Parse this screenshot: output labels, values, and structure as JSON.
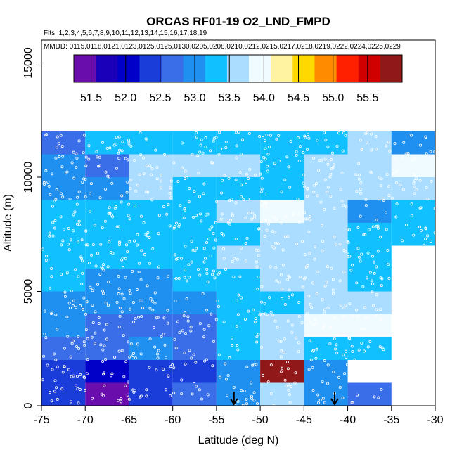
{
  "chart_data": {
    "type": "heatmap",
    "title": "ORCAS RF01-19 O2_LND_FMPD",
    "flights_label": "Flts: 1,2,3,4,5,6,7,8,9,10,11,12,13,14,15,16,17,18,19",
    "dates_label": "MMDD: 0115,0118,0121,0123,0125,0125,0130,0205,0208,0210,0212,0215,0217,0218,0219,0222,0224,0225,0229",
    "xlabel": "Latitude (deg N)",
    "ylabel": "Altitude (m)",
    "xlim": [
      -75,
      -30
    ],
    "ylim": [
      0,
      16000
    ],
    "x_ticks": [
      -75,
      -70,
      -65,
      -60,
      -55,
      -50,
      -45,
      -40,
      -35,
      -30
    ],
    "x_tick_labels": [
      "-75",
      "-70",
      "-65",
      "-60",
      "-55",
      "-50",
      "-45",
      "-40",
      "-35",
      "-30"
    ],
    "y_ticks": [
      0,
      5000,
      10000,
      15000
    ],
    "y_tick_labels": [
      "0",
      "5000",
      "10000",
      "15000"
    ],
    "colorbar": {
      "min": 51.25,
      "max": 56.0,
      "tick_values": [
        51.5,
        52.0,
        52.5,
        53.0,
        53.5,
        54.0,
        54.5,
        55.0,
        55.5
      ],
      "tick_labels": [
        "51.5",
        "52.0",
        "52.5",
        "53.0",
        "53.5",
        "54.0",
        "54.5",
        "55.0",
        "55.5"
      ],
      "colors": [
        "#6a0dad",
        "#1a00b8",
        "#0000c8",
        "#1a3cd8",
        "#3a6ee8",
        "#2090f0",
        "#10c0ff",
        "#aaddff",
        "#f0fbff",
        "#fff2a0",
        "#ffd800",
        "#ff8c00",
        "#ff2000",
        "#d00000",
        "#901818"
      ]
    },
    "lat_bins": [
      -75,
      -70,
      -65,
      -60,
      -55,
      -50,
      -45,
      -40,
      -35,
      -30
    ],
    "alt_bins": [
      0,
      1000,
      2000,
      3000,
      4000,
      5000,
      6000,
      7000,
      8000,
      9000,
      10000,
      11000,
      12000
    ],
    "cells": [
      [
        52.4,
        51.3,
        52.2,
        52.7,
        53.1,
        53.7,
        52.9,
        52.6,
        null
      ],
      [
        52.2,
        52.1,
        52.2,
        52.5,
        53.0,
        55.8,
        53.0,
        null,
        null
      ],
      [
        52.7,
        52.7,
        52.9,
        52.7,
        53.3,
        53.7,
        53.4,
        53.4,
        null
      ],
      [
        52.9,
        52.7,
        52.8,
        52.6,
        53.2,
        53.5,
        53.8,
        53.8,
        null
      ],
      [
        53.0,
        52.9,
        52.9,
        52.9,
        53.4,
        53.4,
        53.7,
        53.7,
        null
      ],
      [
        53.3,
        53.0,
        53.0,
        53.2,
        53.4,
        53.5,
        53.6,
        53.3,
        null
      ],
      [
        53.3,
        53.3,
        53.3,
        53.3,
        53.5,
        53.6,
        53.6,
        53.3,
        null
      ],
      [
        53.3,
        53.3,
        53.3,
        53.3,
        53.4,
        53.5,
        53.6,
        53.3,
        53.3
      ],
      [
        53.4,
        53.3,
        53.4,
        53.4,
        53.5,
        54.0,
        53.6,
        52.9,
        53.4
      ],
      [
        52.9,
        52.9,
        53.5,
        53.3,
        53.4,
        53.4,
        53.5,
        53.6,
        53.6
      ],
      [
        52.9,
        52.7,
        53.5,
        53.5,
        53.5,
        53.4,
        53.5,
        53.6,
        54.0
      ],
      [
        52.8,
        53.2,
        53.3,
        53.3,
        53.4,
        53.3,
        53.4,
        53.6,
        53.1
      ]
    ],
    "arrows_lat": [
      -53.0,
      -41.5
    ]
  }
}
